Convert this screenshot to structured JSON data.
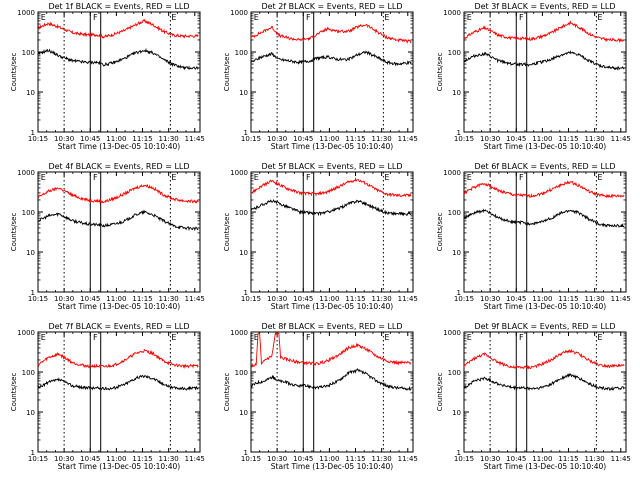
{
  "panel_titles": [
    "Det 1f BLACK = Events, RED = LLD",
    "Det 2f BLACK = Events, RED = LLD",
    "Det 3f BLACK = Events, RED = LLD",
    "Det 4f BLACK = Events, RED = LLD",
    "Det 5f BLACK = Events, RED = LLD",
    "Det 6f BLACK = Events, RED = LLD",
    "Det 7f BLACK = Events, RED = LLD",
    "Det 8f BLACK = Events, RED = LLD",
    "Det 9f BLACK = Events, RED = LLD"
  ],
  "xlabel": "Start Time (13-Dec-05 10:10:40)",
  "ylabel": "Counts/sec",
  "x_ticks": [
    "10:15",
    "10:30",
    "10:45",
    "11:00",
    "11:15",
    "11:30",
    "11:45"
  ],
  "y_ticks": [
    "1",
    "10",
    "100",
    "1000"
  ],
  "markers": {
    "E": "E",
    "F": "F"
  },
  "colors": {
    "events": "#000000",
    "lld": "#ff0000"
  },
  "chart_data": {
    "type": "line",
    "layout": "3x3 small multiples",
    "x_unit": "minutes after 10:15",
    "xlim": [
      0,
      93
    ],
    "yscale": "log",
    "ylim": [
      1,
      1000
    ],
    "grid": false,
    "legend": "in title",
    "x_ticks_min": [
      0,
      15,
      30,
      45,
      60,
      75,
      90
    ],
    "dotted_lines_min": [
      15,
      76
    ],
    "E_markers_min": [
      1,
      76
    ],
    "F_marker_min": 31,
    "vertical_bars_min": [
      30,
      36
    ],
    "panels": [
      {
        "det": "1f",
        "events": [
          [
            0,
            90
          ],
          [
            6,
            110
          ],
          [
            12,
            80
          ],
          [
            20,
            60
          ],
          [
            28,
            55
          ],
          [
            34,
            55
          ],
          [
            38,
            48
          ],
          [
            44,
            55
          ],
          [
            50,
            70
          ],
          [
            56,
            95
          ],
          [
            61,
            110
          ],
          [
            66,
            95
          ],
          [
            72,
            65
          ],
          [
            78,
            48
          ],
          [
            84,
            40
          ],
          [
            92,
            40
          ]
        ],
        "lld": [
          [
            0,
            400
          ],
          [
            6,
            520
          ],
          [
            12,
            420
          ],
          [
            20,
            300
          ],
          [
            28,
            270
          ],
          [
            34,
            270
          ],
          [
            38,
            240
          ],
          [
            44,
            280
          ],
          [
            50,
            350
          ],
          [
            56,
            480
          ],
          [
            61,
            600
          ],
          [
            66,
            480
          ],
          [
            72,
            330
          ],
          [
            78,
            260
          ],
          [
            84,
            250
          ],
          [
            92,
            250
          ]
        ]
      },
      {
        "det": "2f",
        "events": [
          [
            0,
            55
          ],
          [
            6,
            75
          ],
          [
            12,
            90
          ],
          [
            16,
            65
          ],
          [
            22,
            60
          ],
          [
            28,
            55
          ],
          [
            34,
            60
          ],
          [
            38,
            70
          ],
          [
            44,
            75
          ],
          [
            50,
            65
          ],
          [
            56,
            65
          ],
          [
            61,
            85
          ],
          [
            66,
            100
          ],
          [
            72,
            75
          ],
          [
            78,
            55
          ],
          [
            84,
            50
          ],
          [
            92,
            55
          ]
        ],
        "lld": [
          [
            0,
            230
          ],
          [
            6,
            310
          ],
          [
            12,
            420
          ],
          [
            16,
            260
          ],
          [
            22,
            220
          ],
          [
            28,
            200
          ],
          [
            34,
            220
          ],
          [
            38,
            280
          ],
          [
            44,
            380
          ],
          [
            50,
            330
          ],
          [
            56,
            330
          ],
          [
            61,
            420
          ],
          [
            66,
            480
          ],
          [
            72,
            330
          ],
          [
            78,
            230
          ],
          [
            84,
            200
          ],
          [
            92,
            180
          ]
        ]
      },
      {
        "det": "3f",
        "events": [
          [
            0,
            60
          ],
          [
            6,
            80
          ],
          [
            12,
            90
          ],
          [
            20,
            60
          ],
          [
            28,
            50
          ],
          [
            34,
            50
          ],
          [
            38,
            48
          ],
          [
            44,
            55
          ],
          [
            50,
            65
          ],
          [
            56,
            85
          ],
          [
            61,
            95
          ],
          [
            66,
            85
          ],
          [
            72,
            60
          ],
          [
            78,
            45
          ],
          [
            84,
            40
          ],
          [
            92,
            40
          ]
        ],
        "lld": [
          [
            0,
            220
          ],
          [
            6,
            320
          ],
          [
            12,
            400
          ],
          [
            20,
            260
          ],
          [
            28,
            220
          ],
          [
            34,
            220
          ],
          [
            38,
            210
          ],
          [
            44,
            240
          ],
          [
            50,
            300
          ],
          [
            56,
            420
          ],
          [
            61,
            540
          ],
          [
            66,
            420
          ],
          [
            72,
            280
          ],
          [
            78,
            220
          ],
          [
            84,
            200
          ],
          [
            92,
            200
          ]
        ]
      },
      {
        "det": "4f",
        "events": [
          [
            0,
            60
          ],
          [
            6,
            80
          ],
          [
            12,
            90
          ],
          [
            20,
            60
          ],
          [
            28,
            50
          ],
          [
            34,
            48
          ],
          [
            38,
            45
          ],
          [
            44,
            50
          ],
          [
            50,
            60
          ],
          [
            56,
            85
          ],
          [
            61,
            100
          ],
          [
            66,
            85
          ],
          [
            72,
            60
          ],
          [
            78,
            45
          ],
          [
            84,
            40
          ],
          [
            92,
            38
          ]
        ],
        "lld": [
          [
            0,
            230
          ],
          [
            6,
            330
          ],
          [
            12,
            400
          ],
          [
            20,
            260
          ],
          [
            28,
            200
          ],
          [
            34,
            190
          ],
          [
            38,
            180
          ],
          [
            44,
            220
          ],
          [
            50,
            290
          ],
          [
            56,
            400
          ],
          [
            61,
            470
          ],
          [
            66,
            400
          ],
          [
            72,
            270
          ],
          [
            78,
            210
          ],
          [
            84,
            190
          ],
          [
            92,
            180
          ]
        ]
      },
      {
        "det": "5f",
        "events": [
          [
            0,
            110
          ],
          [
            6,
            150
          ],
          [
            12,
            190
          ],
          [
            20,
            140
          ],
          [
            28,
            100
          ],
          [
            34,
            95
          ],
          [
            38,
            90
          ],
          [
            44,
            100
          ],
          [
            50,
            120
          ],
          [
            56,
            160
          ],
          [
            61,
            190
          ],
          [
            66,
            160
          ],
          [
            72,
            120
          ],
          [
            78,
            95
          ],
          [
            84,
            90
          ],
          [
            92,
            90
          ]
        ],
        "lld": [
          [
            0,
            300
          ],
          [
            6,
            440
          ],
          [
            12,
            600
          ],
          [
            20,
            400
          ],
          [
            28,
            300
          ],
          [
            34,
            290
          ],
          [
            38,
            280
          ],
          [
            44,
            320
          ],
          [
            50,
            420
          ],
          [
            56,
            560
          ],
          [
            61,
            650
          ],
          [
            66,
            520
          ],
          [
            72,
            360
          ],
          [
            78,
            280
          ],
          [
            84,
            260
          ],
          [
            92,
            260
          ]
        ]
      },
      {
        "det": "6f",
        "events": [
          [
            0,
            70
          ],
          [
            6,
            95
          ],
          [
            12,
            110
          ],
          [
            20,
            70
          ],
          [
            28,
            55
          ],
          [
            34,
            55
          ],
          [
            38,
            50
          ],
          [
            44,
            55
          ],
          [
            50,
            70
          ],
          [
            56,
            95
          ],
          [
            61,
            110
          ],
          [
            66,
            95
          ],
          [
            72,
            65
          ],
          [
            78,
            50
          ],
          [
            84,
            45
          ],
          [
            92,
            45
          ]
        ],
        "lld": [
          [
            0,
            300
          ],
          [
            6,
            420
          ],
          [
            12,
            520
          ],
          [
            20,
            340
          ],
          [
            28,
            270
          ],
          [
            34,
            260
          ],
          [
            38,
            250
          ],
          [
            44,
            280
          ],
          [
            50,
            360
          ],
          [
            56,
            480
          ],
          [
            61,
            560
          ],
          [
            66,
            460
          ],
          [
            72,
            320
          ],
          [
            78,
            260
          ],
          [
            84,
            250
          ],
          [
            92,
            250
          ]
        ]
      },
      {
        "det": "7f",
        "events": [
          [
            0,
            40
          ],
          [
            6,
            55
          ],
          [
            12,
            65
          ],
          [
            20,
            45
          ],
          [
            28,
            40
          ],
          [
            34,
            40
          ],
          [
            38,
            38
          ],
          [
            44,
            40
          ],
          [
            50,
            50
          ],
          [
            56,
            70
          ],
          [
            61,
            80
          ],
          [
            66,
            70
          ],
          [
            72,
            50
          ],
          [
            78,
            40
          ],
          [
            84,
            38
          ],
          [
            92,
            40
          ]
        ],
        "lld": [
          [
            0,
            150
          ],
          [
            6,
            230
          ],
          [
            12,
            280
          ],
          [
            20,
            170
          ],
          [
            28,
            140
          ],
          [
            34,
            140
          ],
          [
            38,
            135
          ],
          [
            44,
            150
          ],
          [
            50,
            200
          ],
          [
            56,
            290
          ],
          [
            61,
            340
          ],
          [
            66,
            290
          ],
          [
            72,
            190
          ],
          [
            78,
            150
          ],
          [
            84,
            140
          ],
          [
            92,
            145
          ]
        ]
      },
      {
        "det": "8f",
        "events": [
          [
            0,
            45
          ],
          [
            4,
            55
          ],
          [
            8,
            60
          ],
          [
            12,
            75
          ],
          [
            16,
            60
          ],
          [
            20,
            55
          ],
          [
            26,
            45
          ],
          [
            32,
            45
          ],
          [
            38,
            40
          ],
          [
            44,
            45
          ],
          [
            50,
            60
          ],
          [
            56,
            95
          ],
          [
            61,
            110
          ],
          [
            66,
            90
          ],
          [
            72,
            60
          ],
          [
            78,
            45
          ],
          [
            84,
            40
          ],
          [
            92,
            38
          ]
        ],
        "lld": [
          [
            0,
            140
          ],
          [
            3,
            150
          ],
          [
            4,
            900
          ],
          [
            5,
            900
          ],
          [
            6,
            150
          ],
          [
            8,
            200
          ],
          [
            12,
            250
          ],
          [
            14,
            900
          ],
          [
            16,
            900
          ],
          [
            17,
            230
          ],
          [
            20,
            210
          ],
          [
            26,
            180
          ],
          [
            32,
            170
          ],
          [
            38,
            160
          ],
          [
            44,
            190
          ],
          [
            50,
            260
          ],
          [
            56,
            400
          ],
          [
            61,
            470
          ],
          [
            66,
            380
          ],
          [
            72,
            250
          ],
          [
            78,
            190
          ],
          [
            84,
            170
          ],
          [
            92,
            170
          ]
        ]
      },
      {
        "det": "9f",
        "events": [
          [
            0,
            40
          ],
          [
            6,
            60
          ],
          [
            12,
            70
          ],
          [
            20,
            50
          ],
          [
            28,
            40
          ],
          [
            34,
            40
          ],
          [
            38,
            38
          ],
          [
            44,
            40
          ],
          [
            50,
            50
          ],
          [
            56,
            70
          ],
          [
            61,
            85
          ],
          [
            66,
            70
          ],
          [
            72,
            50
          ],
          [
            78,
            40
          ],
          [
            84,
            38
          ],
          [
            92,
            40
          ]
        ],
        "lld": [
          [
            0,
            140
          ],
          [
            6,
            220
          ],
          [
            12,
            280
          ],
          [
            20,
            170
          ],
          [
            28,
            130
          ],
          [
            34,
            130
          ],
          [
            38,
            130
          ],
          [
            44,
            150
          ],
          [
            50,
            200
          ],
          [
            56,
            290
          ],
          [
            61,
            340
          ],
          [
            66,
            280
          ],
          [
            72,
            190
          ],
          [
            78,
            150
          ],
          [
            84,
            140
          ],
          [
            92,
            145
          ]
        ]
      }
    ]
  }
}
